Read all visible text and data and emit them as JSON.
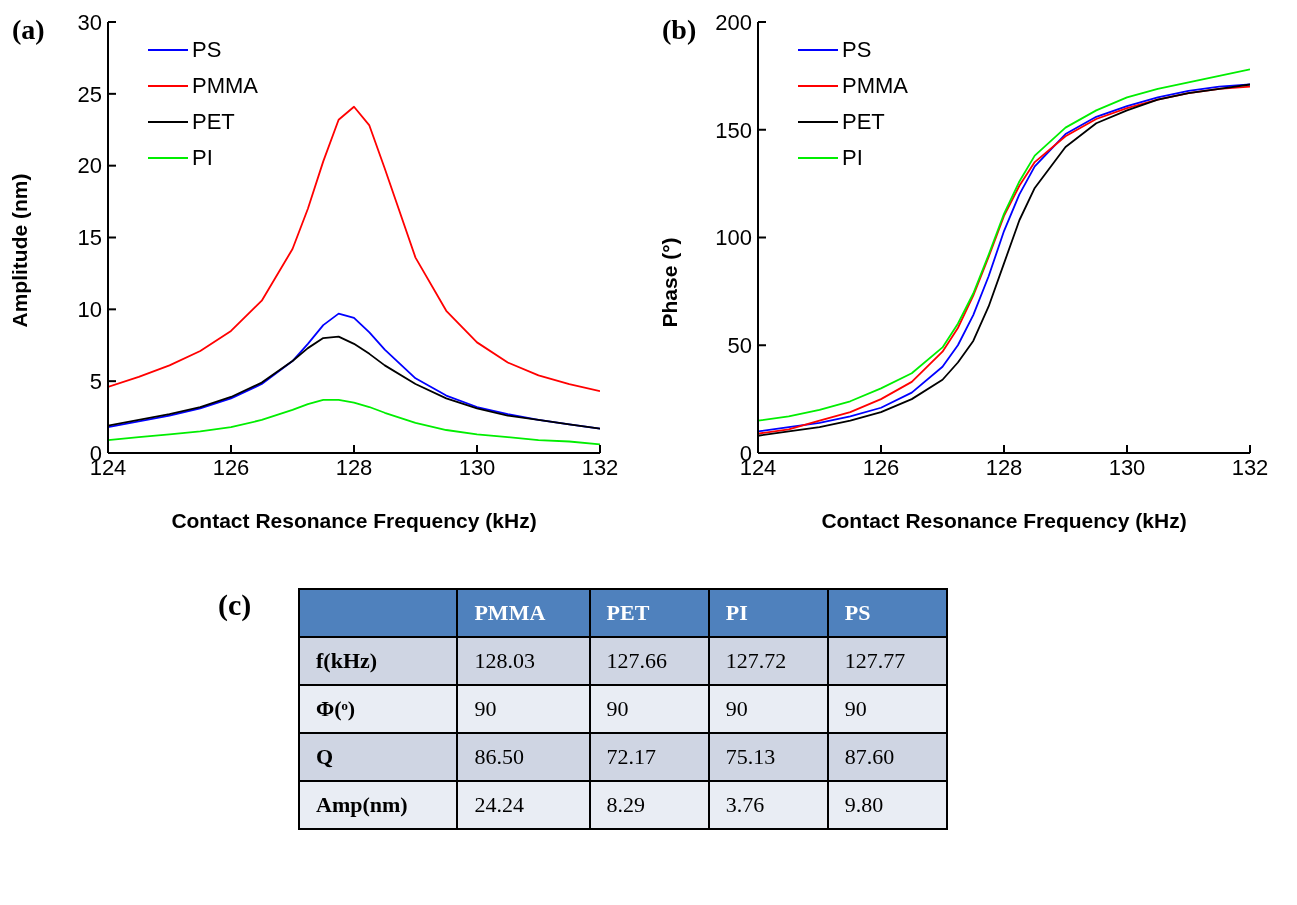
{
  "chart_data": [
    {
      "type": "line",
      "title": "(a)",
      "xlabel": "Contact Resonance Frequency (kHz)",
      "ylabel": "Amplitude (nm)",
      "legend": "top left",
      "x": [
        124,
        124.5,
        125,
        125.5,
        126,
        126.5,
        127,
        127.25,
        127.5,
        127.75,
        128,
        128.25,
        128.5,
        129,
        129.5,
        130,
        130.5,
        131,
        131.5,
        132
      ],
      "xlim": [
        124,
        132
      ],
      "xticks": [
        124,
        126,
        128,
        130,
        132
      ],
      "ylim": [
        0,
        30
      ],
      "yticks": [
        0,
        5,
        10,
        15,
        20,
        25,
        30
      ],
      "series": [
        {
          "name": "PS",
          "color": "#0000ff",
          "values": [
            1.8,
            2.2,
            2.6,
            3.1,
            3.8,
            4.8,
            6.4,
            7.6,
            8.9,
            9.7,
            9.4,
            8.4,
            7.2,
            5.2,
            4.0,
            3.2,
            2.7,
            2.3,
            2.0,
            1.7
          ]
        },
        {
          "name": "PMMA",
          "color": "#ff0000",
          "values": [
            4.6,
            5.3,
            6.1,
            7.1,
            8.5,
            10.6,
            14.2,
            17.0,
            20.3,
            23.2,
            24.1,
            22.8,
            19.8,
            13.6,
            9.9,
            7.7,
            6.3,
            5.4,
            4.8,
            4.3
          ]
        },
        {
          "name": "PET",
          "color": "#000000",
          "values": [
            1.9,
            2.3,
            2.7,
            3.2,
            3.9,
            4.9,
            6.4,
            7.3,
            8.0,
            8.1,
            7.6,
            6.9,
            6.1,
            4.8,
            3.8,
            3.1,
            2.6,
            2.3,
            2.0,
            1.7
          ]
        },
        {
          "name": "PI",
          "color": "#00ee00",
          "values": [
            0.9,
            1.1,
            1.3,
            1.5,
            1.8,
            2.3,
            3.0,
            3.4,
            3.7,
            3.7,
            3.5,
            3.2,
            2.8,
            2.1,
            1.6,
            1.3,
            1.1,
            0.9,
            0.8,
            0.6
          ]
        }
      ]
    },
    {
      "type": "line",
      "title": "(b)",
      "xlabel": "Contact Resonance Frequency (kHz)",
      "ylabel": "Phase (°)",
      "legend": "top left",
      "x": [
        124,
        124.5,
        125,
        125.5,
        126,
        126.5,
        127,
        127.25,
        127.5,
        127.75,
        128,
        128.25,
        128.5,
        129,
        129.5,
        130,
        130.5,
        131,
        131.5,
        132
      ],
      "xlim": [
        124,
        132
      ],
      "xticks": [
        124,
        126,
        128,
        130,
        132
      ],
      "ylim": [
        0,
        200
      ],
      "yticks": [
        0,
        50,
        100,
        150,
        200
      ],
      "series": [
        {
          "name": "PS",
          "color": "#0000ff",
          "values": [
            10,
            12,
            14,
            17,
            21,
            28,
            40,
            50,
            64,
            82,
            103,
            120,
            133,
            148,
            156,
            161,
            165,
            168,
            170,
            171
          ]
        },
        {
          "name": "PMMA",
          "color": "#ff0000",
          "values": [
            9,
            11,
            15,
            19,
            25,
            33,
            47,
            58,
            73,
            91,
            110,
            124,
            135,
            147,
            155,
            160,
            164,
            167,
            169,
            170
          ]
        },
        {
          "name": "PET",
          "color": "#000000",
          "values": [
            8,
            10,
            12,
            15,
            19,
            25,
            34,
            42,
            52,
            68,
            88,
            108,
            123,
            142,
            153,
            159,
            164,
            167,
            169,
            171
          ]
        },
        {
          "name": "PI",
          "color": "#00ee00",
          "values": [
            15,
            17,
            20,
            24,
            30,
            37,
            49,
            60,
            74,
            92,
            111,
            126,
            138,
            151,
            159,
            165,
            169,
            172,
            175,
            178
          ]
        }
      ]
    },
    {
      "type": "other",
      "title": "(c)",
      "categories": [
        "PMMA",
        "PET",
        "PI",
        "PS"
      ],
      "y_categories": [
        "f(kHz)",
        "Φ(ᵒ)",
        "Q",
        "Amp(nm)"
      ],
      "cell_labels": [
        [
          "128.03",
          "127.66",
          "127.72",
          "127.77"
        ],
        [
          "90",
          "90",
          "90",
          "90"
        ],
        [
          "86.50",
          "72.17",
          "75.13",
          "87.60"
        ],
        [
          "24.24",
          "8.29",
          "3.76",
          "9.80"
        ]
      ]
    }
  ]
}
